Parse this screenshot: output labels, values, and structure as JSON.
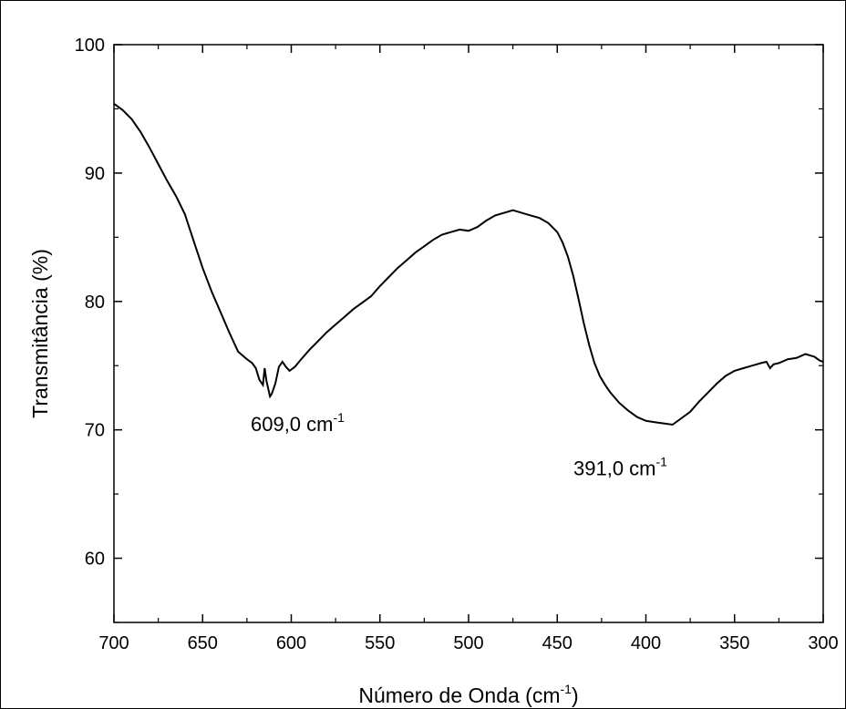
{
  "chart_data": {
    "type": "line",
    "xlabel": "Número de Onda (cm",
    "xlabel_sup": "-1",
    "xlabel_end": ")",
    "ylabel": "Transmitância (%)",
    "xlim": [
      700,
      300
    ],
    "ylim": [
      55,
      100
    ],
    "x_inverted": true,
    "grid": false,
    "x_ticks": [
      700,
      650,
      600,
      550,
      500,
      450,
      400,
      350,
      300
    ],
    "y_ticks": [
      60,
      70,
      80,
      90,
      100
    ],
    "series": [
      {
        "x": [
          700,
          695,
          690,
          685,
          680,
          675,
          670,
          665,
          660,
          655,
          650,
          645,
          640,
          635,
          630,
          625,
          622,
          620,
          618,
          616,
          615,
          614,
          612,
          611,
          609,
          607,
          605,
          603,
          601,
          598,
          595,
          590,
          585,
          580,
          575,
          570,
          565,
          560,
          555,
          550,
          545,
          540,
          535,
          530,
          525,
          520,
          515,
          510,
          505,
          500,
          495,
          490,
          485,
          480,
          475,
          470,
          465,
          460,
          455,
          450,
          447,
          444,
          441,
          438,
          435,
          432,
          429,
          426,
          423,
          420,
          415,
          410,
          405,
          400,
          395,
          390,
          385,
          380,
          375,
          370,
          365,
          360,
          355,
          350,
          345,
          340,
          335,
          332,
          330,
          328,
          325,
          320,
          315,
          310,
          305,
          302,
          300
        ],
        "y": [
          95.4,
          94.9,
          94.2,
          93.2,
          92.0,
          90.7,
          89.4,
          88.2,
          86.8,
          84.7,
          82.6,
          80.8,
          79.2,
          77.6,
          76.1,
          75.5,
          75.2,
          74.8,
          73.9,
          73.5,
          74.8,
          73.8,
          72.6,
          72.8,
          73.6,
          74.9,
          75.3,
          74.9,
          74.6,
          74.9,
          75.4,
          76.2,
          76.9,
          77.6,
          78.2,
          78.8,
          79.4,
          79.9,
          80.4,
          81.2,
          81.9,
          82.6,
          83.2,
          83.8,
          84.3,
          84.8,
          85.2,
          85.4,
          85.6,
          85.5,
          85.8,
          86.3,
          86.7,
          86.9,
          87.1,
          86.9,
          86.7,
          86.5,
          86.1,
          85.4,
          84.6,
          83.5,
          82.0,
          80.2,
          78.3,
          76.6,
          75.2,
          74.2,
          73.5,
          72.9,
          72.1,
          71.5,
          71.0,
          70.7,
          70.6,
          70.5,
          70.4,
          70.9,
          71.4,
          72.2,
          72.9,
          73.6,
          74.2,
          74.6,
          74.8,
          75.0,
          75.2,
          75.3,
          74.8,
          75.1,
          75.2,
          75.5,
          75.6,
          75.9,
          75.7,
          75.4,
          75.3
        ]
      }
    ],
    "annotations": [
      {
        "x": 609,
        "y": 72.6,
        "text": "609,0 cm",
        "sup": "-1"
      },
      {
        "x": 391,
        "y": 70.5,
        "text": "391,0 cm",
        "sup": "-1"
      }
    ]
  }
}
